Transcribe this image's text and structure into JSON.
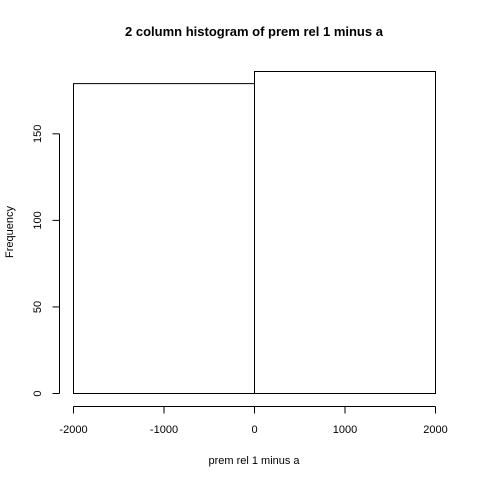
{
  "chart_data": {
    "type": "bar",
    "title": "2 column histogram of prem rel 1 minus a",
    "xlabel": "prem rel 1 minus a",
    "ylabel": "Frequency",
    "bins": [
      {
        "start": -2000,
        "end": 0,
        "count": 179
      },
      {
        "start": 0,
        "end": 2000,
        "count": 186
      }
    ],
    "xlim": [
      -2000,
      2000
    ],
    "ylim": [
      0,
      186
    ],
    "x_ticks": [
      -2000,
      -1000,
      0,
      1000,
      2000
    ],
    "y_ticks": [
      0,
      50,
      100,
      150
    ],
    "grid": false,
    "colors": {
      "bar_fill": "#ffffff",
      "bar_stroke": "#000000"
    }
  }
}
